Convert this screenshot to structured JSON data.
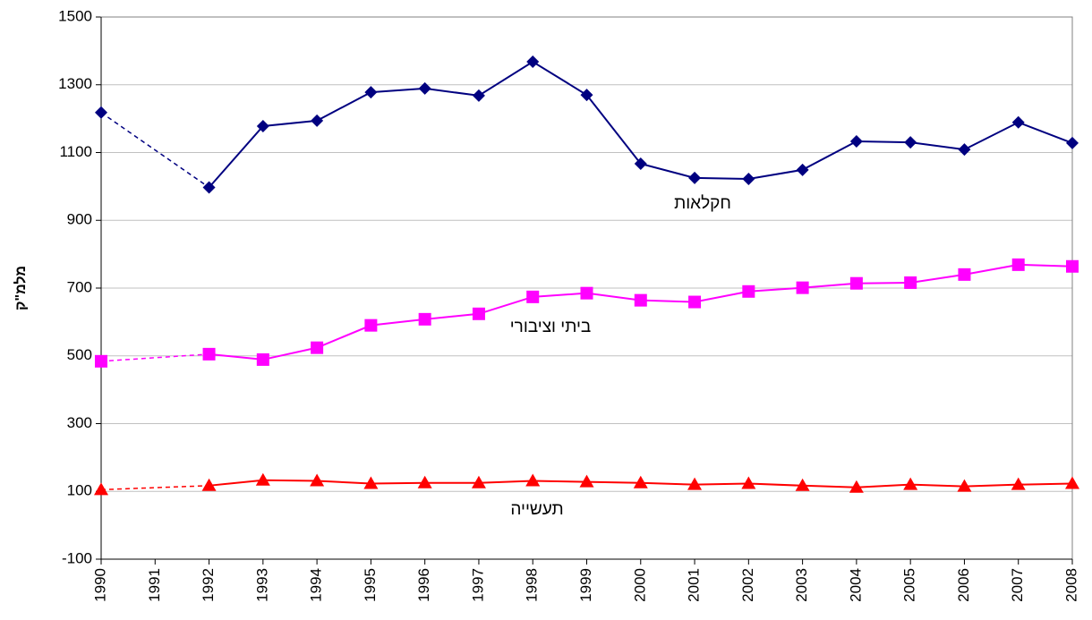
{
  "chart_data": {
    "type": "line",
    "y_label": "מלמ\"ק",
    "categories": [
      "1990",
      "1991",
      "1992",
      "1993",
      "1994",
      "1995",
      "1996",
      "1997",
      "1998",
      "1999",
      "2000",
      "2001",
      "2002",
      "2003",
      "2004",
      "2005",
      "2006",
      "2007",
      "2008"
    ],
    "series": [
      {
        "name": "חקלאות",
        "color": "#000080",
        "marker": "diamond",
        "values": [
          1218,
          null,
          997,
          1178,
          1194,
          1278,
          1289,
          1268,
          1368,
          1270,
          1067,
          1025,
          1022,
          1049,
          1133,
          1130,
          1109,
          1189,
          1128
        ]
      },
      {
        "name": "ביתי וציבורי",
        "color": "#ff00ff",
        "marker": "square",
        "values": [
          484,
          null,
          505,
          489,
          524,
          590,
          608,
          624,
          674,
          685,
          664,
          659,
          690,
          701,
          714,
          716,
          740,
          769,
          764
        ]
      },
      {
        "name": "תעשייה",
        "color": "#ff0000",
        "marker": "triangle",
        "values": [
          105,
          null,
          117,
          133,
          131,
          123,
          125,
          125,
          131,
          128,
          125,
          120,
          123,
          117,
          112,
          120,
          115,
          120,
          123
        ]
      }
    ],
    "ylim": [
      -100,
      1500
    ],
    "yticks": [
      -100,
      100,
      300,
      500,
      700,
      900,
      1100,
      1300,
      1500
    ],
    "grid": true
  }
}
